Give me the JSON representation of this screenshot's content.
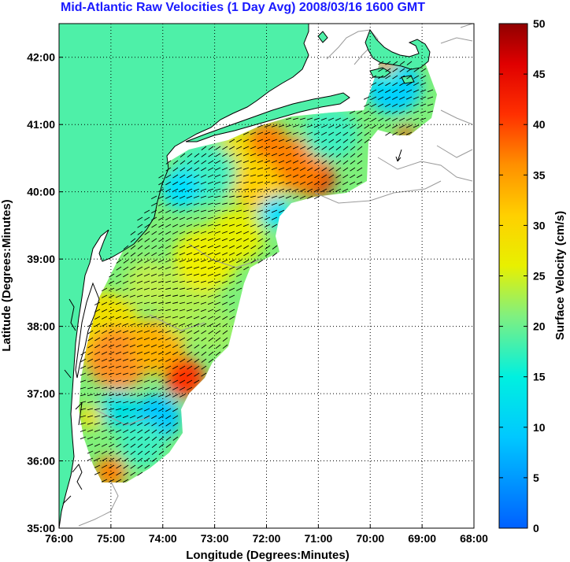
{
  "title": "Mid-Atlantic Raw Velocities (1 Day Avg) 2008/03/16 1600 GMT",
  "map": {
    "xlabel": "Longitude (Degrees:Minutes)",
    "ylabel": "Latitude (Degrees:Minutes)",
    "lon_ticks": [
      "76:00",
      "75:00",
      "74:00",
      "73:00",
      "72:00",
      "71:00",
      "70:00",
      "69:00",
      "68:00"
    ],
    "lat_ticks": [
      "35:00",
      "36:00",
      "37:00",
      "38:00",
      "39:00",
      "40:00",
      "41:00",
      "42:00"
    ],
    "lon_range": [
      -76,
      -68
    ],
    "lat_range": [
      35,
      42.5
    ],
    "grid": "dotted",
    "land_color": "#4ef0a8",
    "arrow_color": "#000000"
  },
  "colorbar": {
    "label": "Surface Velocity (cm/s)",
    "ticks": [
      "0",
      "5",
      "10",
      "15",
      "20",
      "25",
      "30",
      "35",
      "40",
      "45",
      "50"
    ],
    "range": [
      0,
      50
    ],
    "colormap": "jet"
  }
}
